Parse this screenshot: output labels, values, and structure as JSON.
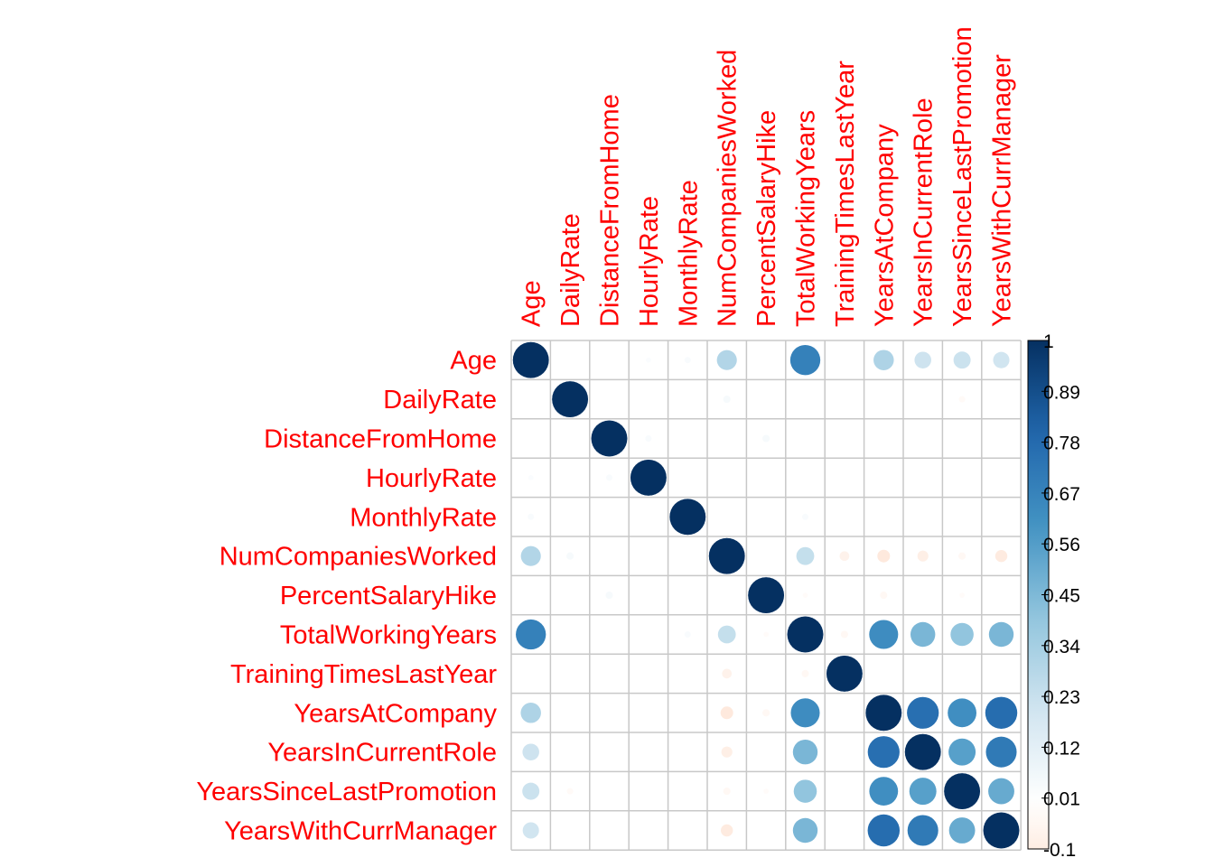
{
  "chart_data": {
    "type": "heatmap",
    "style": "correlation-circles",
    "variables": [
      "Age",
      "DailyRate",
      "DistanceFromHome",
      "HourlyRate",
      "MonthlyRate",
      "NumCompaniesWorked",
      "PercentSalaryHike",
      "TotalWorkingYears",
      "TrainingTimesLastYear",
      "YearsAtCompany",
      "YearsInCurrentRole",
      "YearsSinceLastPromotion",
      "YearsWithCurrManager"
    ],
    "matrix": [
      [
        1,
        0,
        0,
        0.02,
        0.03,
        0.3,
        0,
        0.68,
        0,
        0.31,
        0.21,
        0.22,
        0.2
      ],
      [
        0,
        1,
        0,
        0,
        0,
        0.04,
        0,
        0,
        0,
        0,
        0,
        -0.03,
        0
      ],
      [
        0,
        0,
        1,
        0.03,
        0,
        0,
        0.04,
        0,
        0,
        0,
        0,
        0,
        0
      ],
      [
        0.02,
        0,
        0.03,
        1,
        0,
        0,
        0,
        0,
        0,
        0,
        0,
        0,
        0
      ],
      [
        0.03,
        0,
        0,
        0,
        1,
        0,
        0,
        0.03,
        0,
        0,
        0,
        0,
        0
      ],
      [
        0.3,
        0.04,
        0,
        0,
        0,
        1,
        0,
        0.24,
        -0.07,
        -0.12,
        -0.09,
        -0.04,
        -0.11
      ],
      [
        0,
        0,
        0.04,
        0,
        0,
        0,
        1,
        -0.02,
        0,
        -0.04,
        0,
        -0.02,
        0
      ],
      [
        0.68,
        0,
        0,
        0,
        0.03,
        0.24,
        -0.02,
        1,
        -0.04,
        0.63,
        0.46,
        0.4,
        0.46
      ],
      [
        0,
        0,
        0,
        0,
        0,
        -0.07,
        0,
        -0.04,
        1,
        0,
        0,
        0,
        0
      ],
      [
        0.31,
        0,
        0,
        0,
        0,
        -0.12,
        -0.04,
        0.63,
        0,
        1,
        0.76,
        0.62,
        0.77
      ],
      [
        0.21,
        0,
        0,
        0,
        0,
        -0.09,
        0,
        0.46,
        0,
        0.76,
        1,
        0.55,
        0.71
      ],
      [
        0.22,
        -0.03,
        0,
        0,
        0,
        -0.04,
        -0.02,
        0.4,
        0,
        0.62,
        0.55,
        1,
        0.51
      ],
      [
        0.2,
        0,
        0,
        0,
        0,
        -0.11,
        0,
        0.46,
        0,
        0.77,
        0.71,
        0.51,
        1
      ]
    ],
    "colorbar": {
      "min": -0.1,
      "max": 1,
      "ticks": [
        "1",
        "0.89",
        "0.78",
        "0.67",
        "0.56",
        "0.45",
        "0.34",
        "0.23",
        "0.12",
        "0.01",
        "-0.1"
      ]
    },
    "colors": {
      "label": "#ff0000",
      "grid": "#c8c8c8",
      "scale": [
        "#67001f",
        "#b2182b",
        "#d6604d",
        "#f4a582",
        "#fddbc7",
        "#ffffff",
        "#d1e5f0",
        "#92c5de",
        "#4393c3",
        "#2166ac",
        "#053061"
      ]
    }
  }
}
